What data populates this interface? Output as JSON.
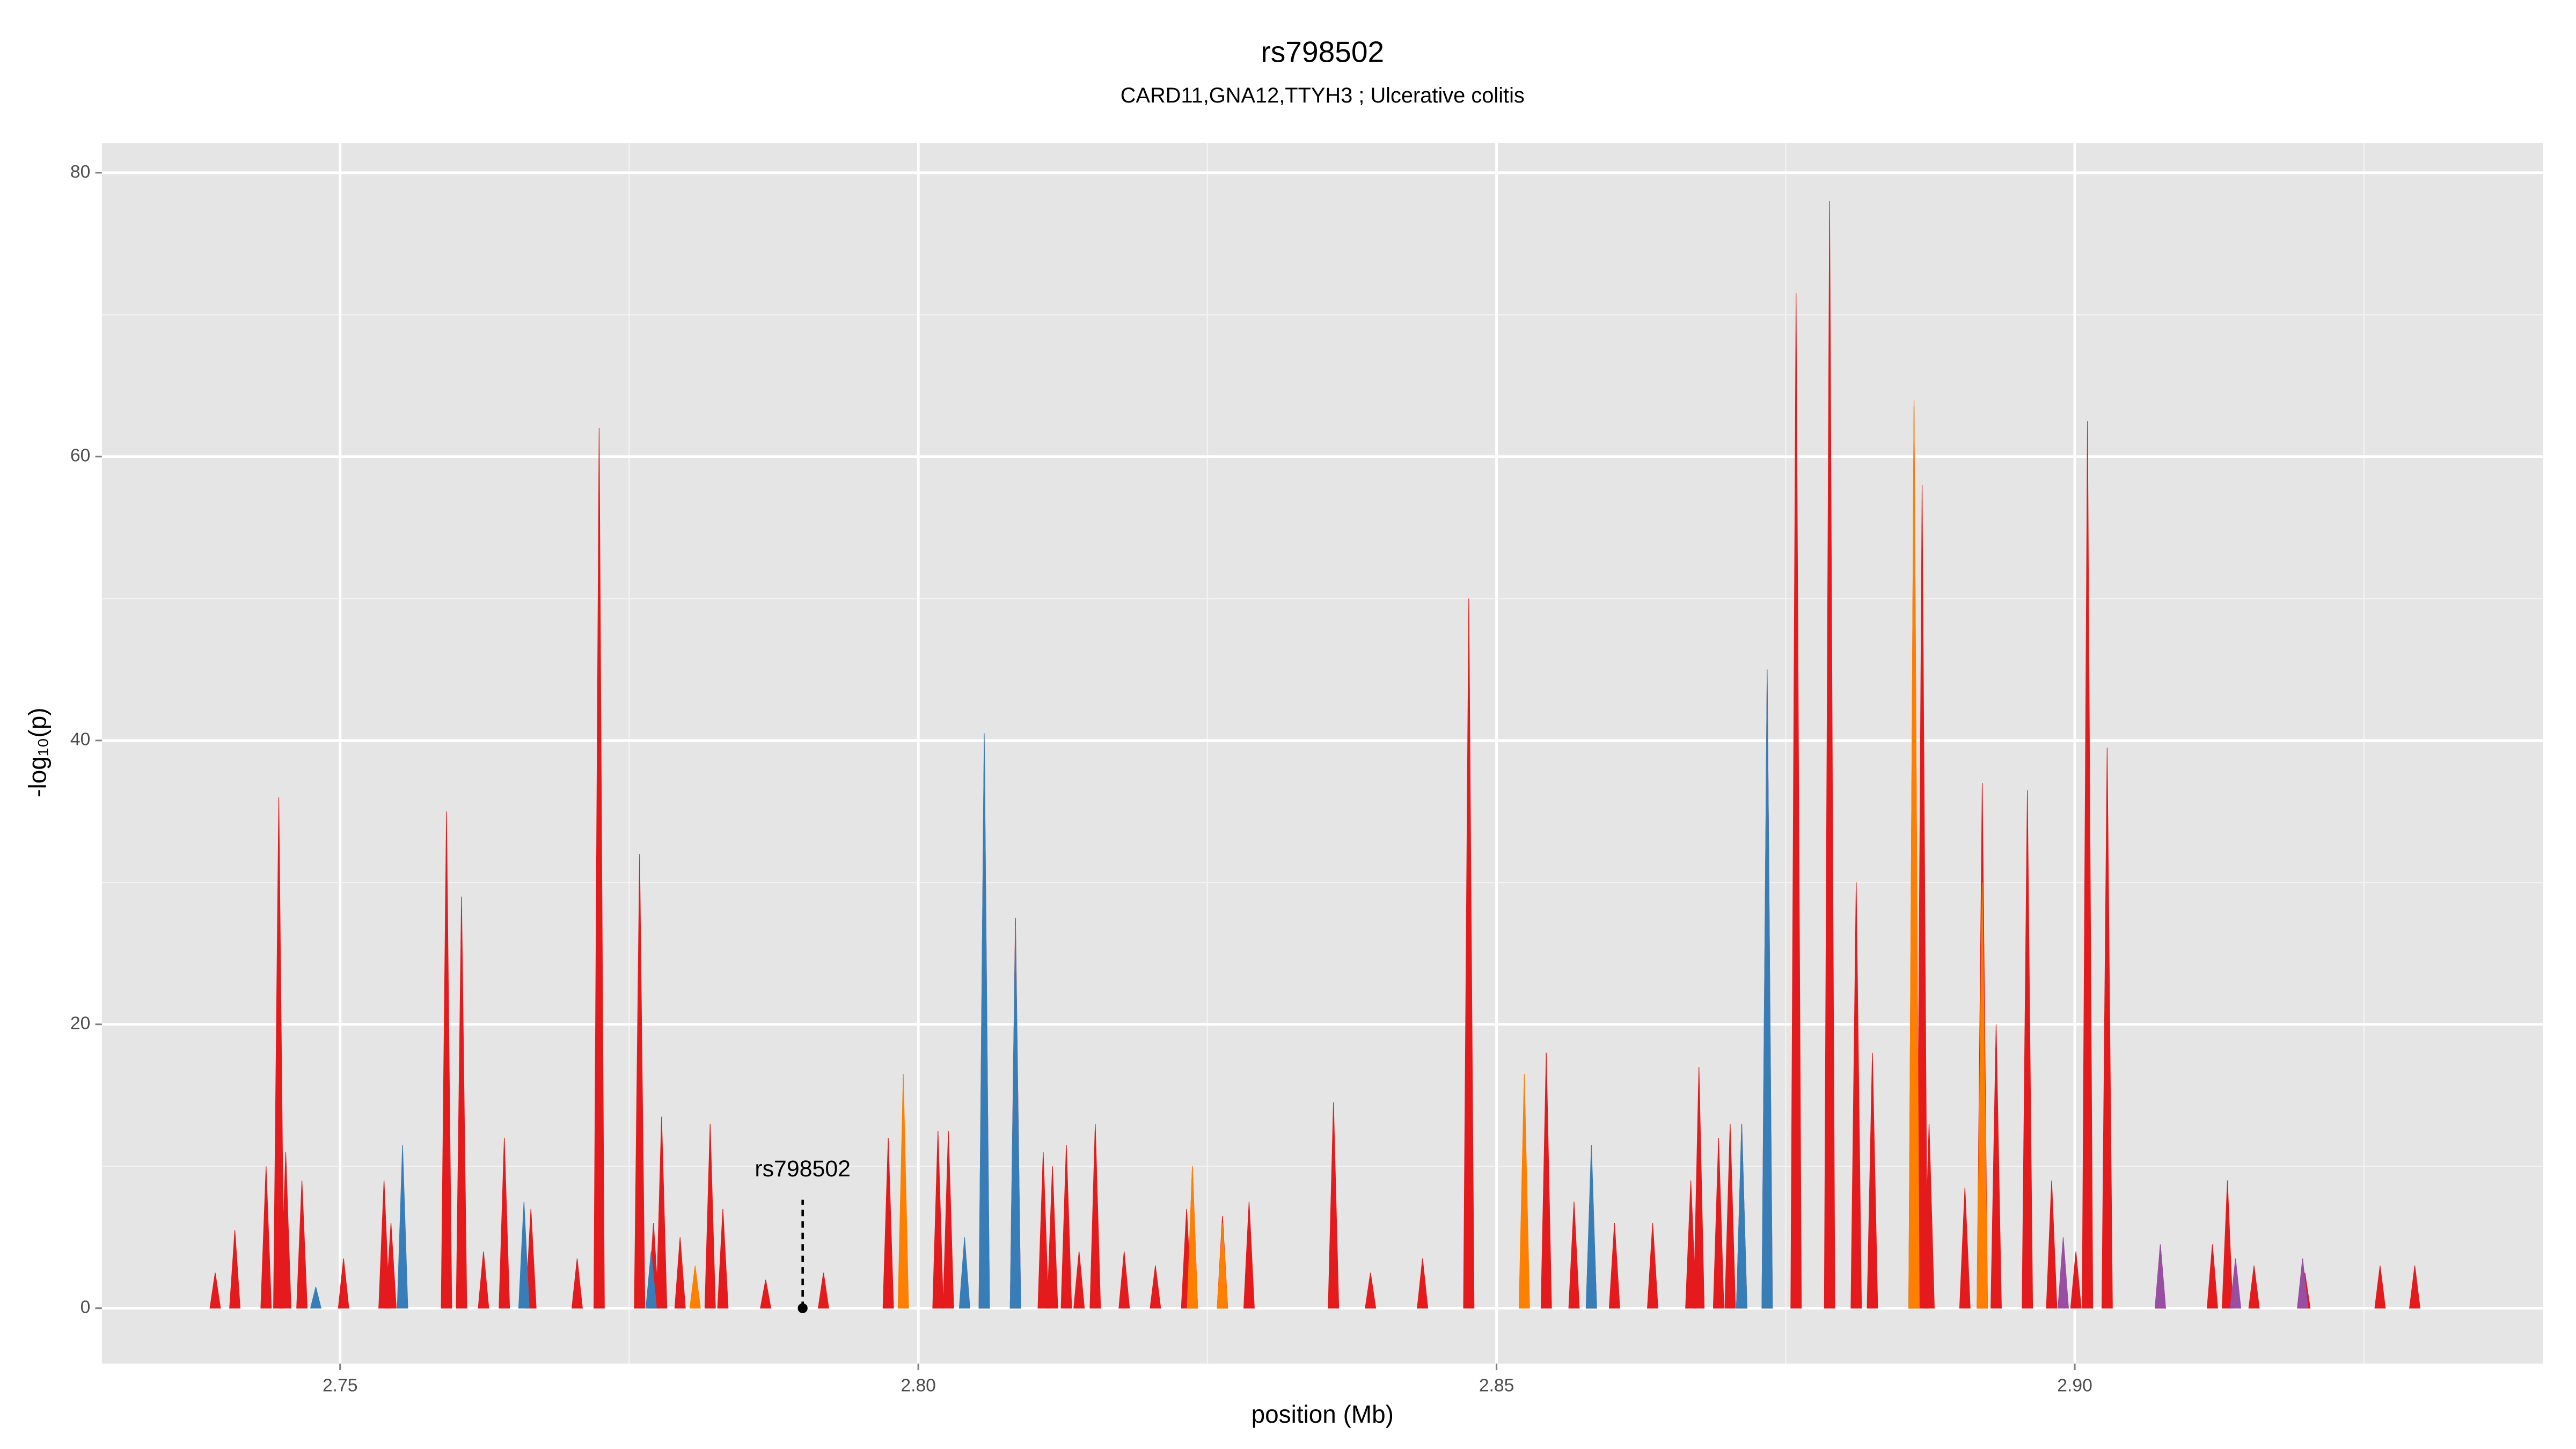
{
  "chart_data": {
    "type": "area",
    "title": "rs798502",
    "subtitle": "CARD11,GNA12,TTYH3 ; Ulcerative colitis",
    "xlabel": "position (Mb)",
    "ylabel": "-log₁₀(p)",
    "xlim": [
      2.7294,
      2.9405
    ],
    "ylim": [
      -3.9,
      82.1
    ],
    "xticks": [
      2.75,
      {
        "value": 2.8,
        "label": "2.80"
      },
      2.85,
      {
        "value": 2.9,
        "label": "2.90"
      }
    ],
    "yticks": [
      0,
      20,
      40,
      60,
      80
    ],
    "minor_xticks": [
      2.775,
      2.825,
      2.875,
      2.925
    ],
    "minor_yticks": [
      10,
      30,
      50,
      70
    ],
    "grid": true,
    "series": [
      {
        "color": "#e41a1c",
        "x": [
          2.7392,
          2.7409,
          2.7436,
          2.7447,
          2.7453,
          2.7467,
          2.7503,
          2.7538,
          2.7544,
          2.7592,
          2.7605,
          2.7624,
          2.7642,
          2.7665,
          2.7705,
          2.7724,
          2.7759,
          2.7771,
          2.7778,
          2.7794,
          2.782,
          2.7831,
          2.7868,
          2.7918,
          2.7974,
          2.8017,
          2.8026,
          2.8057,
          2.8084,
          2.8108,
          2.8116,
          2.8128,
          2.8139,
          2.8153,
          2.8178,
          2.8205,
          2.8232,
          2.8237,
          2.8263,
          2.8286,
          2.8359,
          2.8391,
          2.8436,
          2.8476,
          2.8543,
          2.8567,
          2.8582,
          2.8602,
          2.8635,
          2.8668,
          2.8675,
          2.8692,
          2.8702,
          2.8712,
          2.8734,
          2.8759,
          2.8788,
          2.8811,
          2.8825,
          2.8861,
          2.8868,
          2.8874,
          2.8905,
          2.892,
          2.8932,
          2.8959,
          2.898,
          2.9001,
          2.9011,
          2.9028,
          2.9074,
          2.9119,
          2.9132,
          2.9155,
          2.9199,
          2.9264,
          2.9294
        ],
        "values": [
          2.5,
          5.5,
          10,
          36,
          11,
          9,
          3.5,
          9,
          6,
          35,
          29,
          4,
          12,
          7,
          3.5,
          62,
          32,
          6,
          13.5,
          5,
          13,
          7,
          2,
          2.5,
          12,
          12.5,
          12.5,
          40,
          27.5,
          11,
          10,
          11.5,
          4,
          13,
          4,
          3,
          7,
          10,
          6.5,
          7.5,
          14.5,
          2.5,
          3.5,
          50,
          18,
          7.5,
          11,
          6,
          6,
          9,
          17,
          12,
          13,
          13,
          45,
          71.5,
          78,
          30,
          18,
          63.5,
          58,
          13,
          8.5,
          37,
          20,
          36.5,
          9,
          4,
          62.5,
          39.5,
          4.5,
          4.5,
          9,
          3,
          2.5,
          3,
          3
        ]
      },
      {
        "color": "#377eb8",
        "x": [
          2.7479,
          2.7554,
          2.7659,
          2.7769,
          2.804,
          2.8057,
          2.8084,
          2.8582,
          2.8712,
          2.8734,
          2.8861
        ],
        "values": [
          1.5,
          11.5,
          7.5,
          4,
          5,
          40.5,
          27,
          11.5,
          13,
          45,
          54
        ]
      },
      {
        "color": "#ff7f00",
        "x": [
          2.7807,
          2.7987,
          2.8237,
          2.8263,
          2.8524,
          2.8861,
          2.892
        ],
        "values": [
          3,
          16.5,
          10,
          6,
          16.5,
          64,
          30
        ]
      },
      {
        "color": "#984ea3",
        "x": [
          2.899,
          2.9074,
          2.9139,
          2.9197
        ],
        "values": [
          5,
          4.5,
          3.5,
          3.5
        ]
      }
    ],
    "annotation": {
      "label": "rs798502",
      "x": 2.79,
      "y": 0
    }
  }
}
